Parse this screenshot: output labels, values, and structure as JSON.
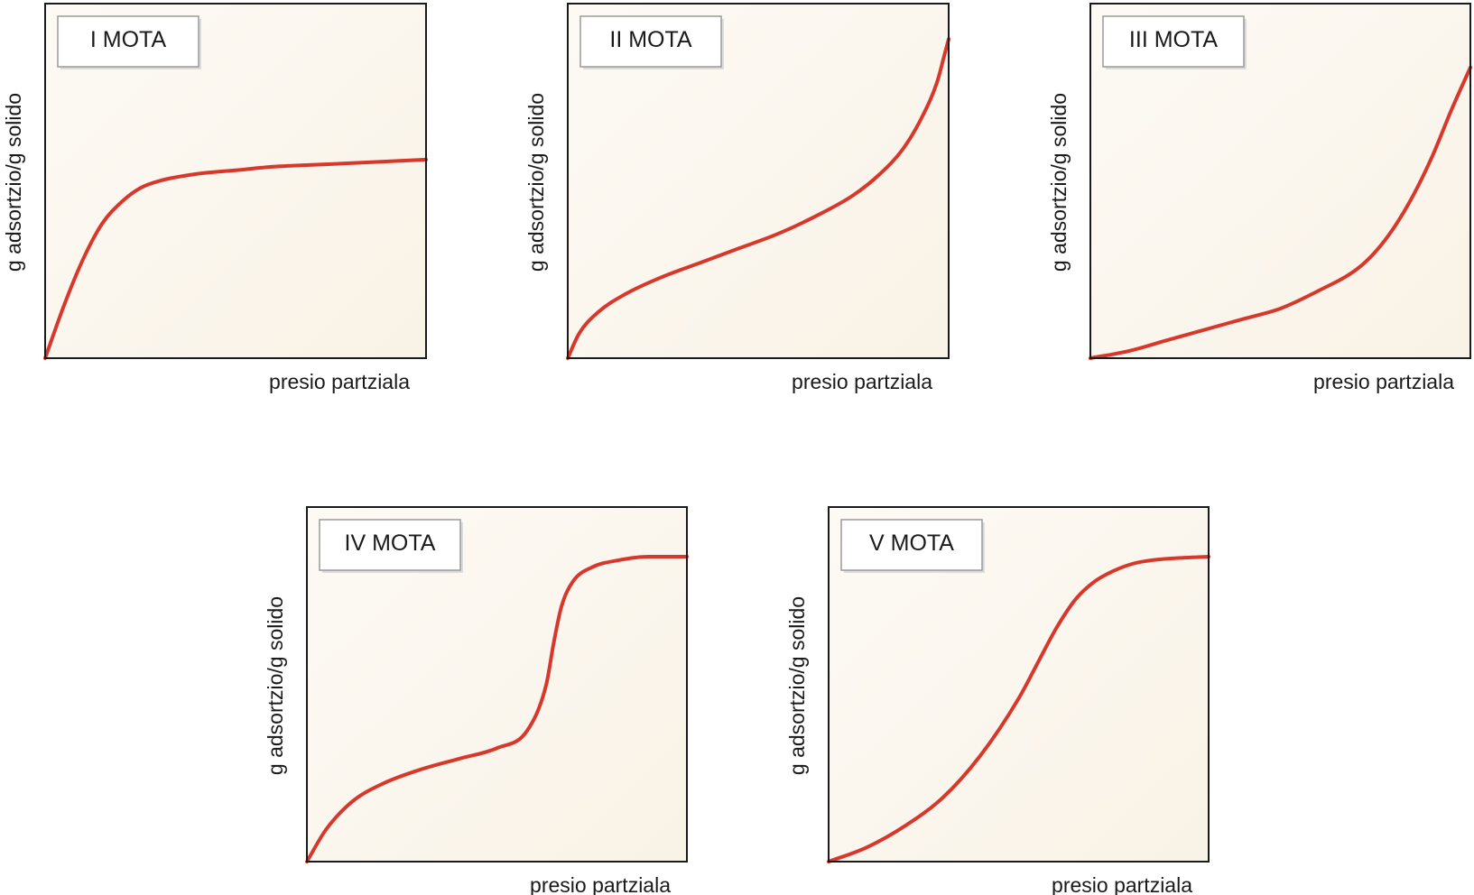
{
  "chart_data": [
    {
      "type": "line",
      "title": "I MOTA",
      "xlabel": "presio partziala",
      "ylabel": "g adsortzio/g solido",
      "xlim": [
        0,
        1
      ],
      "ylim": [
        0,
        1
      ],
      "x": [
        0,
        0.05,
        0.1,
        0.15,
        0.2,
        0.25,
        0.3,
        0.4,
        0.5,
        0.6,
        0.7,
        0.8,
        0.9,
        1.0
      ],
      "series": [
        {
          "name": "I MOTA",
          "values": [
            0,
            0.15,
            0.28,
            0.38,
            0.44,
            0.48,
            0.5,
            0.52,
            0.53,
            0.54,
            0.545,
            0.55,
            0.555,
            0.56
          ]
        }
      ]
    },
    {
      "type": "line",
      "title": "II MOTA",
      "xlabel": "presio partziala",
      "ylabel": "g adsortzio/g solido",
      "xlim": [
        0,
        1
      ],
      "ylim": [
        0,
        1
      ],
      "x": [
        0,
        0.03,
        0.08,
        0.15,
        0.25,
        0.35,
        0.45,
        0.55,
        0.65,
        0.75,
        0.82,
        0.88,
        0.93,
        0.97,
        0.99,
        1.0
      ],
      "series": [
        {
          "name": "II MOTA",
          "values": [
            0,
            0.07,
            0.13,
            0.18,
            0.23,
            0.27,
            0.31,
            0.35,
            0.4,
            0.46,
            0.52,
            0.59,
            0.68,
            0.78,
            0.86,
            0.9
          ]
        }
      ]
    },
    {
      "type": "line",
      "title": "III MOTA",
      "xlabel": "presio partziala",
      "ylabel": "g adsortzio/g solido",
      "xlim": [
        0,
        1
      ],
      "ylim": [
        0,
        1
      ],
      "x": [
        0,
        0.1,
        0.2,
        0.3,
        0.4,
        0.5,
        0.6,
        0.7,
        0.75,
        0.8,
        0.85,
        0.9,
        0.95,
        1.0
      ],
      "series": [
        {
          "name": "III MOTA",
          "values": [
            0,
            0.02,
            0.05,
            0.08,
            0.11,
            0.14,
            0.19,
            0.25,
            0.3,
            0.37,
            0.46,
            0.57,
            0.7,
            0.82
          ]
        }
      ]
    },
    {
      "type": "line",
      "title": "IV MOTA",
      "xlabel": "presio partziala",
      "ylabel": "g adsortzio/g solido",
      "xlim": [
        0,
        1
      ],
      "ylim": [
        0,
        1
      ],
      "x": [
        0,
        0.05,
        0.12,
        0.2,
        0.3,
        0.4,
        0.5,
        0.58,
        0.63,
        0.65,
        0.67,
        0.7,
        0.75,
        0.82,
        0.9,
        1.0
      ],
      "series": [
        {
          "name": "IV MOTA",
          "values": [
            0,
            0.09,
            0.17,
            0.22,
            0.26,
            0.29,
            0.32,
            0.37,
            0.5,
            0.62,
            0.72,
            0.79,
            0.83,
            0.85,
            0.86,
            0.86
          ]
        }
      ]
    },
    {
      "type": "line",
      "title": "V MOTA",
      "xlabel": "presio partziala",
      "ylabel": "g adsortzio/g solido",
      "xlim": [
        0,
        1
      ],
      "ylim": [
        0,
        1
      ],
      "x": [
        0,
        0.1,
        0.2,
        0.3,
        0.4,
        0.5,
        0.55,
        0.6,
        0.65,
        0.7,
        0.75,
        0.8,
        0.85,
        0.9,
        1.0
      ],
      "series": [
        {
          "name": "V MOTA",
          "values": [
            0,
            0.04,
            0.1,
            0.18,
            0.3,
            0.46,
            0.56,
            0.66,
            0.74,
            0.79,
            0.82,
            0.84,
            0.85,
            0.855,
            0.86
          ]
        }
      ]
    }
  ],
  "colors": {
    "curve": "#d7382b",
    "axis": "#1a1a1a",
    "panel_bg": "#fbf6ee",
    "panel_bg_light": "#fdfaf5",
    "tag_bg": "#ffffff",
    "tag_border": "#9a9a9a",
    "tag_shadow": "#dcdcdc",
    "text": "#1a1a1a"
  }
}
